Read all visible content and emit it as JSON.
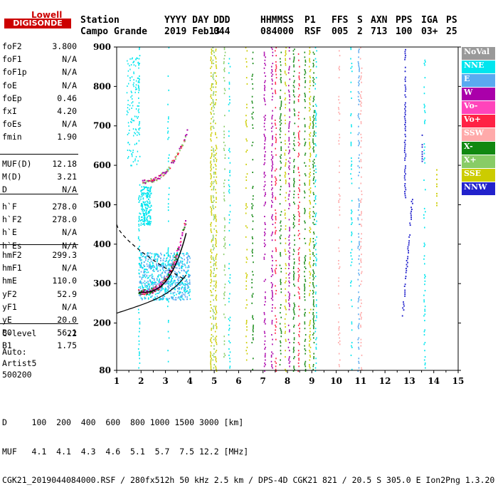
{
  "logo": {
    "top": "Lowell",
    "bottom": "DIGISONDE"
  },
  "header": {
    "cols": [
      {
        "label": "Station",
        "value": "Campo Grande"
      },
      {
        "label": "YYYY DAY",
        "value": "2019 Feb13"
      },
      {
        "label": "DDD",
        "value": "044"
      },
      {
        "label": "HHMMSS",
        "value": "084000"
      },
      {
        "label": "P1",
        "value": "RSF"
      },
      {
        "label": "FFS",
        "value": "005"
      },
      {
        "label": "S",
        "value": "2"
      },
      {
        "label": "AXN",
        "value": "713"
      },
      {
        "label": "PPS",
        "value": "100"
      },
      {
        "label": "IGA",
        "value": "03+"
      },
      {
        "label": "PS",
        "value": "25"
      }
    ]
  },
  "params": {
    "group1": [
      {
        "label": "foF2",
        "value": "3.800"
      },
      {
        "label": "foF1",
        "value": "N/A"
      },
      {
        "label": "foF1p",
        "value": "N/A"
      },
      {
        "label": "foE",
        "value": "N/A"
      },
      {
        "label": "foEp",
        "value": "0.46"
      },
      {
        "label": "fxI",
        "value": "4.20"
      },
      {
        "label": "foEs",
        "value": "N/A"
      },
      {
        "label": "fmin",
        "value": "1.90"
      }
    ],
    "group2": [
      {
        "label": "MUF(D)",
        "value": "12.18"
      },
      {
        "label": "M(D)",
        "value": "3.21"
      },
      {
        "label": "D",
        "value": "N/A"
      }
    ],
    "group3": [
      {
        "label": "h`F",
        "value": "278.0"
      },
      {
        "label": "h`F2",
        "value": "278.0"
      },
      {
        "label": "h`E",
        "value": "N/A"
      },
      {
        "label": "h`Es",
        "value": "N/A"
      }
    ],
    "group4": [
      {
        "label": "hmF2",
        "value": "299.3"
      },
      {
        "label": "hmF1",
        "value": "N/A"
      },
      {
        "label": "hmE",
        "value": "110.0"
      },
      {
        "label": "yF2",
        "value": "52.9"
      },
      {
        "label": "yF1",
        "value": "N/A"
      },
      {
        "label": "yE",
        "value": "20.0"
      },
      {
        "label": "B0",
        "value": "56.1"
      },
      {
        "label": "B1",
        "value": "1.75"
      }
    ],
    "group5": [
      {
        "label": "C-level",
        "value": "22"
      }
    ]
  },
  "auto": {
    "line1": "Auto:",
    "line2": "Artist5",
    "line3": "500200"
  },
  "legend": [
    {
      "label": "NoVal",
      "color": "#999999"
    },
    {
      "label": "NNE",
      "color": "#00e5ee"
    },
    {
      "label": "E",
      "color": "#5aaaf0"
    },
    {
      "label": "W",
      "color": "#aa00aa"
    },
    {
      "label": "Vo-",
      "color": "#ff44bb"
    },
    {
      "label": "Vo+",
      "color": "#ff2244"
    },
    {
      "label": "SSW",
      "color": "#ffaaaa"
    },
    {
      "label": "X-",
      "color": "#118811"
    },
    {
      "label": "X+",
      "color": "#88cc66"
    },
    {
      "label": "SSE",
      "color": "#cccc00"
    },
    {
      "label": "NNW",
      "color": "#2222cc"
    }
  ],
  "chart_data": {
    "type": "scatter",
    "xlim": [
      1,
      15
    ],
    "ylim": [
      80,
      900
    ],
    "x_ticks": [
      1,
      2,
      3,
      4,
      5,
      6,
      7,
      8,
      9,
      10,
      11,
      12,
      13,
      14,
      15
    ],
    "y_ticks": [
      80,
      200,
      300,
      400,
      500,
      600,
      700,
      800,
      900
    ],
    "grid": false
  },
  "footer": {
    "line1": "D     100  200  400  600  800 1000 1500 3000 [km]",
    "line2": "MUF   4.1  4.1  4.3  4.6  5.1  5.7  7.5 12.2 [MHz]",
    "line3": "CGK21_2019044084000.RSF / 280fx512h 50 kHz 2.5 km / DPS-4D CGK21 821 / 20.5 S 305.0 E Ion2Png 1.3.20"
  }
}
